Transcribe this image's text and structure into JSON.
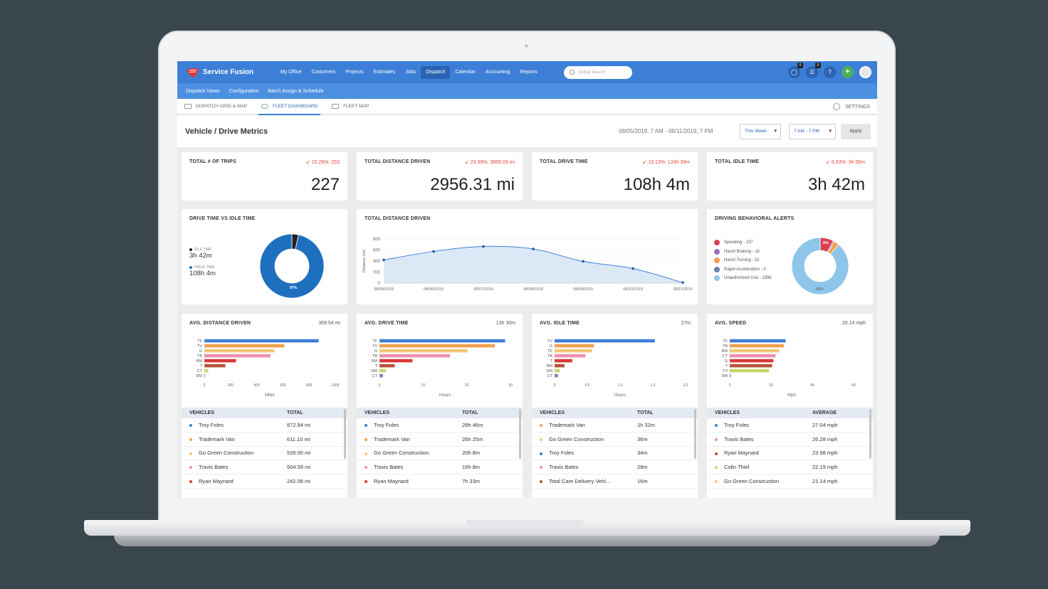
{
  "app": {
    "name": "Service Fusion"
  },
  "nav": {
    "items": [
      "My Office",
      "Customers",
      "Projects",
      "Estimates",
      "Jobs",
      "Dispatch",
      "Calendar",
      "Accounting",
      "Reports"
    ],
    "active": "Dispatch",
    "search_placeholder": "Global Search",
    "chat_badge": "0",
    "list_badge": "0",
    "help": "?",
    "add": "+"
  },
  "subnav": [
    "Dispatch Views",
    "Configuration",
    "Batch Assign & Schedule"
  ],
  "tabs": [
    {
      "label": "DISPATCH GRID & MAP",
      "active": false
    },
    {
      "label": "FLEET DASHBOARD",
      "active": true
    },
    {
      "label": "FLEET MAP",
      "active": false
    }
  ],
  "settings_label": "SETTINGS",
  "page": {
    "title": "Vehicle / Drive Metrics",
    "date_range": "08/05/2019, 7 AM - 08/11/2019, 7 PM",
    "period_select": "This Week",
    "hours_select": "7 AM - 7 PM",
    "apply": "Apply"
  },
  "kpis": [
    {
      "title": "TOTAL # OF TRIPS",
      "delta": "10.28%: 253",
      "value": "227"
    },
    {
      "title": "TOTAL DISTANCE DRIVEN",
      "delta": "23.39%: 3859.09 mi",
      "value": "2956.31 mi"
    },
    {
      "title": "TOTAL DRIVE TIME",
      "delta": "19.13%: 133h 39m",
      "value": "108h 4m"
    },
    {
      "title": "TOTAL IDLE TIME",
      "delta": "5.93%: 3h 56m",
      "value": "3h 42m"
    }
  ],
  "drive_vs_idle": {
    "title": "DRIVE TIME VS IDLE TIME",
    "idle_label": "IDLE TIME",
    "idle_value": "3h 42m",
    "drive_label": "DRIVE TIME",
    "drive_value": "108h 4m",
    "pct_label": "97%"
  },
  "distance_chart": {
    "title": "TOTAL DISTANCE DRIVEN",
    "ylabel": "Distance (mi)"
  },
  "alerts": {
    "title": "DRIVING BEHAVIORAL ALERTS",
    "items": [
      {
        "label": "Speeding - 137",
        "color": "#d9404f"
      },
      {
        "label": "Harsh Braking - 15",
        "color": "#9a6fc2"
      },
      {
        "label": "Harsh Turning - 52",
        "color": "#f0a04b"
      },
      {
        "label": "Rapid Acceleration - 0",
        "color": "#6f7fa6"
      },
      {
        "label": "Unauthorized Use - 1596",
        "color": "#8ec6ea"
      }
    ],
    "pct_top": "8%",
    "pct_bottom": "89%"
  },
  "panels": [
    {
      "title": "AVG. DISTANCE DRIVEN",
      "summary": "369.54 mi",
      "xlabel": "Miles",
      "ticks": [
        "0",
        "200",
        "400",
        "600",
        "800",
        "1000"
      ],
      "max": 1000,
      "labels": [
        "TF",
        "TV",
        "G",
        "TB",
        "RM",
        "T",
        "CT",
        "DM"
      ],
      "values": [
        872.94,
        611.1,
        535.0,
        504.59,
        242.08,
        160,
        30,
        5
      ],
      "col_left": "VEHICLES",
      "col_right": "TOTAL",
      "rows": [
        {
          "name": "Troy Foles",
          "value": "872.94 mi",
          "color": "#3d7fd6"
        },
        {
          "name": "Trademark Van",
          "value": "611.10 mi",
          "color": "#f0a04b"
        },
        {
          "name": "Go Green Construction",
          "value": "535.00 mi",
          "color": "#f5c77a"
        },
        {
          "name": "Travis Bates",
          "value": "504.59 mi",
          "color": "#ef8fb0"
        },
        {
          "name": "Ryan Maynard",
          "value": "242.08 mi",
          "color": "#d93a36"
        }
      ]
    },
    {
      "title": "AVG. DRIVE TIME",
      "summary": "13h 30m",
      "xlabel": "Hours",
      "ticks": [
        "0",
        "10",
        "20",
        "30"
      ],
      "max": 30,
      "labels": [
        "TF",
        "TV",
        "G",
        "TB",
        "RM",
        "T",
        "DM",
        "CT"
      ],
      "values": [
        28.77,
        26.42,
        20.13,
        16.13,
        7.55,
        3.5,
        1.5,
        0.8
      ],
      "col_left": "VEHICLES",
      "col_right": "TOTAL",
      "rows": [
        {
          "name": "Troy Foles",
          "value": "28h 46m",
          "color": "#3d7fd6"
        },
        {
          "name": "Trademark Van",
          "value": "26h 25m",
          "color": "#f0a04b"
        },
        {
          "name": "Go Green Construction",
          "value": "20h 8m",
          "color": "#f5c77a"
        },
        {
          "name": "Travis Bates",
          "value": "16h 8m",
          "color": "#ef8fb0"
        },
        {
          "name": "Ryan Maynard",
          "value": "7h 33m",
          "color": "#d93a36"
        }
      ]
    },
    {
      "title": "AVG. IDLE TIME",
      "summary": "27m",
      "xlabel": "Hours",
      "ticks": [
        "0",
        "0.5",
        "1.0",
        "1.5",
        "2.0"
      ],
      "max": 2.0,
      "labels": [
        "TV",
        "G",
        "TF",
        "TB",
        "T",
        "RM",
        "DM",
        "CT"
      ],
      "values": [
        1.53,
        0.6,
        0.57,
        0.47,
        0.27,
        0.15,
        0.08,
        0.05
      ],
      "col_left": "VEHICLES",
      "col_right": "TOTAL",
      "rows": [
        {
          "name": "Trademark Van",
          "value": "1h 32m",
          "color": "#f0a04b"
        },
        {
          "name": "Go Green Construction",
          "value": "36m",
          "color": "#f5c77a"
        },
        {
          "name": "Troy Foles",
          "value": "34m",
          "color": "#3d7fd6"
        },
        {
          "name": "Travis Bates",
          "value": "28m",
          "color": "#ef8fb0"
        },
        {
          "name": "Total Care Delivery Vehi...",
          "value": "16m",
          "color": "#b5523b"
        }
      ]
    },
    {
      "title": "AVG. SPEED",
      "summary": "20.14 mph",
      "xlabel": "Mph",
      "ticks": [
        "0",
        "20",
        "40",
        "60"
      ],
      "max": 60,
      "labels": [
        "TF",
        "TB",
        "RM",
        "CT",
        "G",
        "T",
        "TV",
        "DM"
      ],
      "values": [
        27.04,
        26.28,
        23.98,
        22.19,
        21.14,
        20.5,
        19.0,
        0.5
      ],
      "col_left": "VEHICLES",
      "col_right": "AVERAGE",
      "rows": [
        {
          "name": "Troy Foles",
          "value": "27.04 mph",
          "color": "#3d7fd6"
        },
        {
          "name": "Travis Bates",
          "value": "26.28 mph",
          "color": "#ef8fb0"
        },
        {
          "name": "Ryan Maynard",
          "value": "23.98 mph",
          "color": "#d93a36"
        },
        {
          "name": "Colin Thiel",
          "value": "22.19 mph",
          "color": "#c6d86b"
        },
        {
          "name": "Go Green Construction",
          "value": "21.14 mph",
          "color": "#f5c77a"
        }
      ]
    }
  ],
  "bar_colors": [
    "#3d7fd6",
    "#f0a04b",
    "#f5c77a",
    "#ef8fb0",
    "#d93a36",
    "#b5523b",
    "#c6d86b",
    "#9a6fc2"
  ],
  "chart_data": [
    {
      "type": "line",
      "title": "TOTAL DISTANCE DRIVEN",
      "ylabel": "Distance (mi)",
      "x": [
        "08/05/2019",
        "08/06/2019",
        "08/07/2019",
        "08/08/2019",
        "08/09/2019",
        "08/10/2019",
        "08/11/2019"
      ],
      "values": [
        420,
        575,
        665,
        620,
        395,
        265,
        10
      ],
      "yticks": [
        0,
        200,
        400,
        600,
        800
      ],
      "ylim": [
        0,
        800
      ],
      "area": true
    },
    {
      "type": "pie",
      "title": "DRIVE TIME VS IDLE TIME",
      "categories": [
        "IDLE TIME",
        "DRIVE TIME"
      ],
      "values": [
        3.7,
        108.07
      ]
    },
    {
      "type": "pie",
      "title": "DRIVING BEHAVIORAL ALERTS",
      "categories": [
        "Speeding",
        "Harsh Braking",
        "Harsh Turning",
        "Rapid Acceleration",
        "Unauthorized Use"
      ],
      "values": [
        137,
        15,
        52,
        0,
        1596
      ]
    }
  ]
}
